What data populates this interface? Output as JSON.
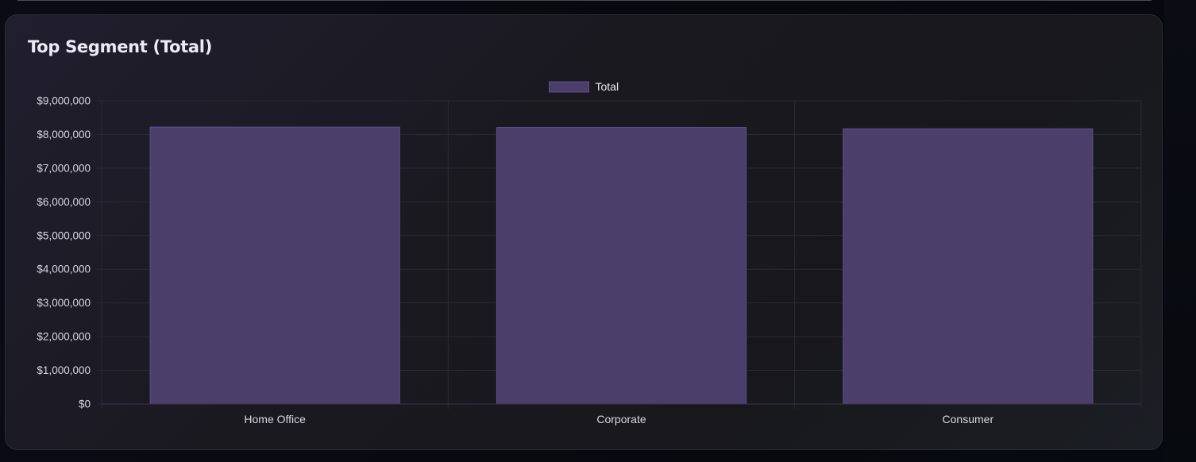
{
  "card": {
    "title": "Top Segment (Total)"
  },
  "chart_data": {
    "type": "bar",
    "categories": [
      "Home Office",
      "Corporate",
      "Consumer"
    ],
    "series": [
      {
        "name": "Total",
        "values": [
          8220000,
          8210000,
          8170000
        ],
        "color": "#4a3f6b"
      }
    ],
    "ylim": [
      0,
      9000000
    ],
    "yticks": [
      0,
      1000000,
      2000000,
      3000000,
      4000000,
      5000000,
      6000000,
      7000000,
      8000000,
      9000000
    ],
    "ytick_labels": [
      "$0",
      "$1,000,000",
      "$2,000,000",
      "$3,000,000",
      "$4,000,000",
      "$5,000,000",
      "$6,000,000",
      "$7,000,000",
      "$8,000,000",
      "$9,000,000"
    ],
    "title": "",
    "xlabel": "",
    "ylabel": "",
    "legend_position": "top-center",
    "grid": true,
    "colors": {
      "bar_fill": "#4a3f6b",
      "bar_stroke": "#5d5088",
      "grid": "#2b2a33",
      "tick_text": "#d8d6e2"
    }
  }
}
